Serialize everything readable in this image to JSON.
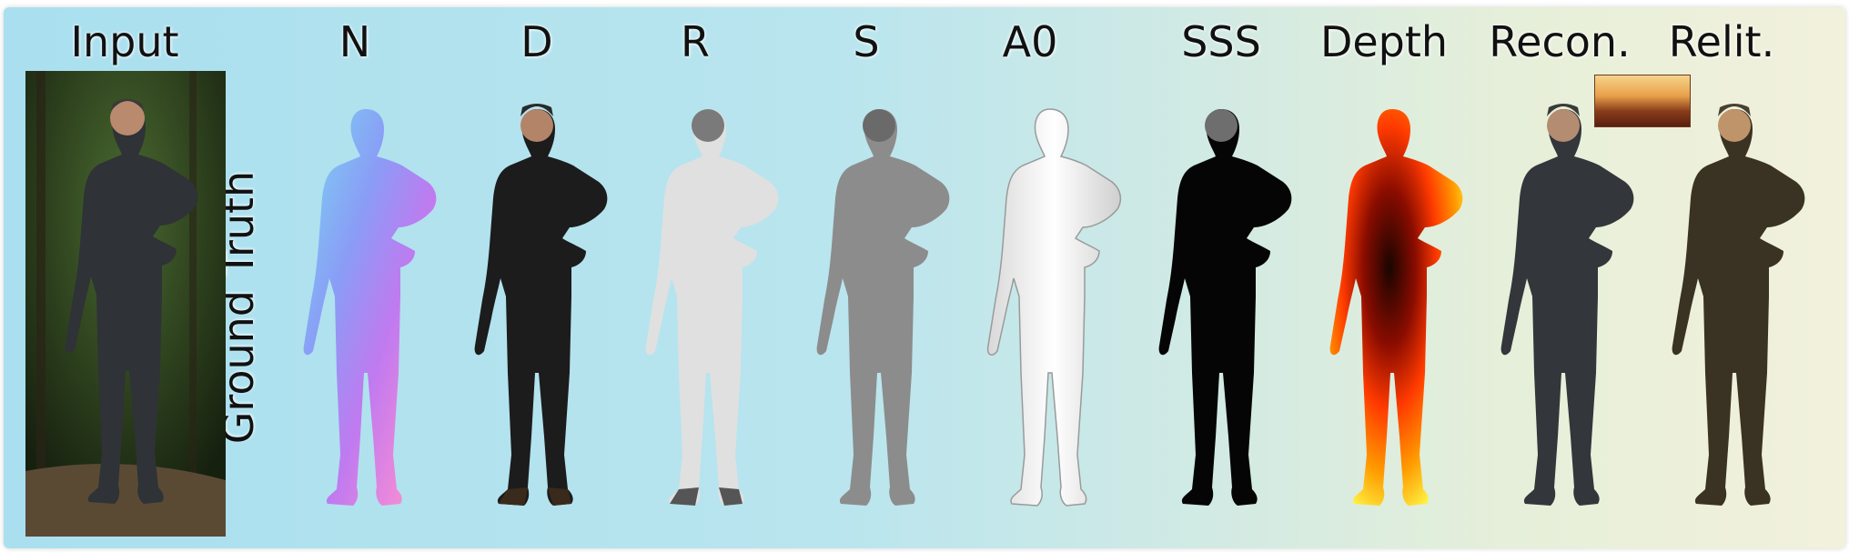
{
  "figure": {
    "columns": [
      {
        "key": "input",
        "label": "Input"
      },
      {
        "key": "n",
        "label": "N"
      },
      {
        "key": "d",
        "label": "D"
      },
      {
        "key": "r",
        "label": "R"
      },
      {
        "key": "s",
        "label": "S"
      },
      {
        "key": "a0",
        "label": "A0"
      },
      {
        "key": "sss",
        "label": "SSS"
      },
      {
        "key": "depth",
        "label": "Depth"
      },
      {
        "key": "recon",
        "label": "Recon."
      },
      {
        "key": "relit",
        "label": "Relit."
      }
    ],
    "row_label": "Ground Truth",
    "colors": {
      "background_left": "#a9dfef",
      "background_right": "#f2f1dc",
      "diffuse_clothing": "#1c1c1c",
      "roughness_gray": "#e0e0e0",
      "specular_gray": "#8c8c8c",
      "ao_white": "#f2f2f2",
      "sss_black": "#050505",
      "depth_hot": "#ff4a00",
      "relit_brown": "#3a3222"
    }
  }
}
